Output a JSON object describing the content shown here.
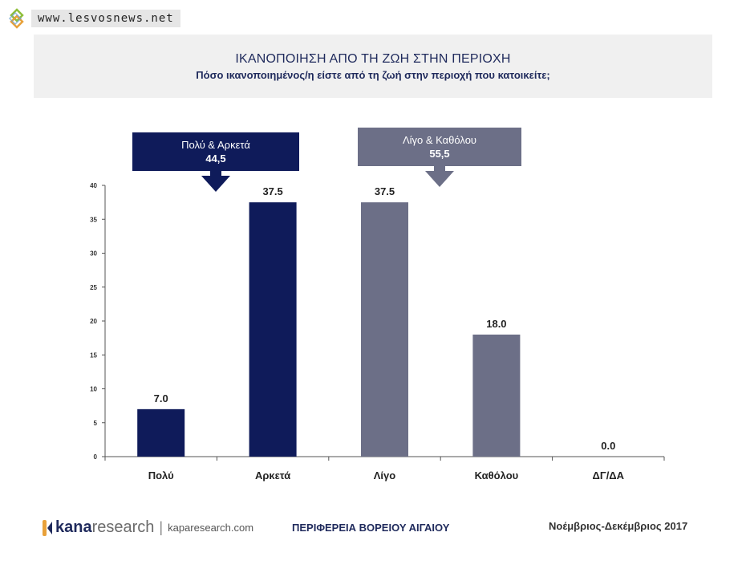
{
  "watermark": {
    "text": "www.lesvosnews.net"
  },
  "header": {
    "title": "ΙΚΑΝΟΠΟΙΗΣΗ ΑΠΟ ΤΗ ΖΩΗ ΣΤΗΝ ΠΕΡΙΟΧΗ",
    "subtitle": "Πόσο ικανοποιημένος/η είστε από τη ζωή στην περιοχή που κατοικείτε;"
  },
  "callouts": {
    "positive": {
      "label": "Πολύ & Αρκετά",
      "value": "44,5",
      "color": "#0f1b5a"
    },
    "negative": {
      "label": "Λίγο & Καθόλου",
      "value": "55,5",
      "color": "#6c6f87"
    }
  },
  "chart_data": {
    "type": "bar",
    "categories": [
      "Πολύ",
      "Αρκετά",
      "Λίγο",
      "Καθόλου",
      "ΔΓ/ΔΑ"
    ],
    "values": [
      7.0,
      37.5,
      37.5,
      18.0,
      0.0
    ],
    "value_labels": [
      "7.0",
      "37.5",
      "37.5",
      "18.0",
      "0.0"
    ],
    "colors": [
      "#0f1b5a",
      "#0f1b5a",
      "#6c6f87",
      "#6c6f87",
      "#6c6f87"
    ],
    "ylim": [
      0,
      40
    ],
    "yticks": [
      0,
      5,
      10,
      15,
      20,
      25,
      30,
      35,
      40
    ],
    "grid": false,
    "title": "",
    "xlabel": "",
    "ylabel": ""
  },
  "footer": {
    "brand_bold": "kana",
    "brand_light": "research",
    "separator": "|",
    "url": "kaparesearch.com",
    "region": "ΠΕΡΙΦΕΡΕΙΑ ΒΟΡΕΙΟΥ ΑΙΓΑΙΟΥ",
    "date": "Νοέμβριος-Δεκέμβριος 2017"
  }
}
